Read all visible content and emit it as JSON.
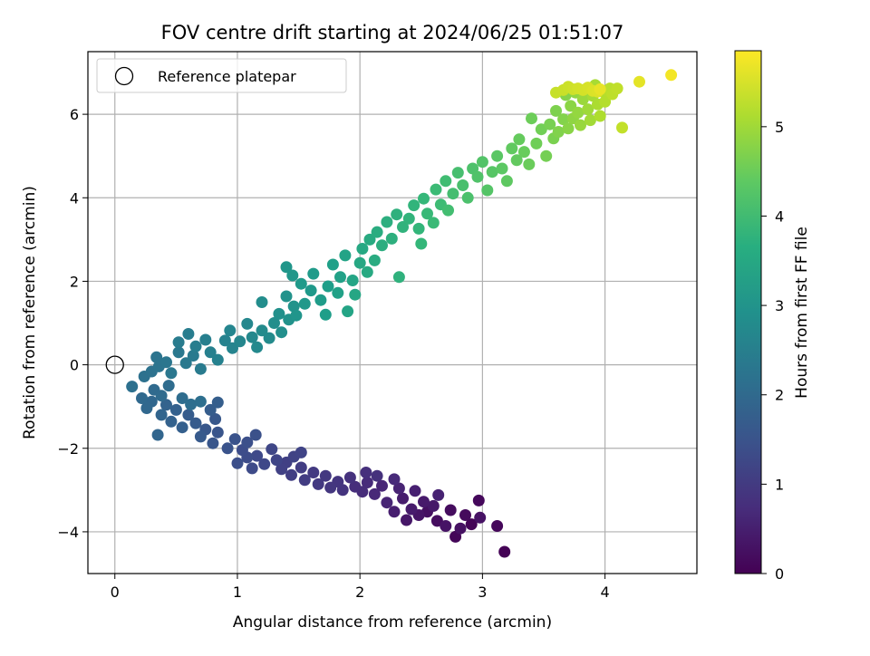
{
  "chart_data": {
    "type": "scatter",
    "title": "FOV centre drift starting at 2024/06/25 01:51:07",
    "xlabel": "Angular distance from reference (arcmin)",
    "ylabel": "Rotation from reference (arcmin)",
    "xlim": [
      -0.22,
      4.75
    ],
    "ylim": [
      -5.0,
      7.5
    ],
    "xticks": [
      0,
      1,
      2,
      3,
      4
    ],
    "yticks": [
      -4,
      -2,
      0,
      2,
      4,
      6
    ],
    "xtick_labels": [
      "0",
      "1",
      "2",
      "3",
      "4"
    ],
    "ytick_labels": [
      "−4",
      "−2",
      "0",
      "2",
      "4",
      "6"
    ],
    "grid": true,
    "legend": {
      "placement": "top-left",
      "entries": [
        "Reference platepar"
      ]
    },
    "reference_point": {
      "x": 0.0,
      "y": 0.0
    },
    "colorbar": {
      "label": "Hours from first FF file",
      "range": [
        0,
        5.85
      ],
      "ticks": [
        0,
        1,
        2,
        3,
        4,
        5
      ],
      "tick_labels": [
        "0",
        "1",
        "2",
        "3",
        "4",
        "5"
      ],
      "colormap": "viridis"
    },
    "series": [
      {
        "points": [
          [
            3.18,
            -4.48,
            0.02
          ],
          [
            2.91,
            -3.82,
            0.05
          ],
          [
            2.78,
            -4.12,
            0.08
          ],
          [
            3.12,
            -3.86,
            0.1
          ],
          [
            2.97,
            -3.25,
            0.12
          ],
          [
            2.86,
            -3.6,
            0.15
          ],
          [
            2.74,
            -3.48,
            0.18
          ],
          [
            2.63,
            -3.74,
            0.2
          ],
          [
            2.55,
            -3.52,
            0.23
          ],
          [
            2.82,
            -3.92,
            0.26
          ],
          [
            2.98,
            -3.66,
            0.28
          ],
          [
            2.7,
            -3.86,
            0.3
          ],
          [
            2.48,
            -3.6,
            0.33
          ],
          [
            2.38,
            -3.72,
            0.36
          ],
          [
            2.6,
            -3.38,
            0.38
          ],
          [
            2.52,
            -3.28,
            0.41
          ],
          [
            2.42,
            -3.46,
            0.44
          ],
          [
            2.35,
            -3.2,
            0.46
          ],
          [
            2.28,
            -3.52,
            0.49
          ],
          [
            2.45,
            -3.02,
            0.52
          ],
          [
            2.64,
            -3.12,
            0.55
          ],
          [
            2.32,
            -2.96,
            0.58
          ],
          [
            2.22,
            -3.3,
            0.6
          ],
          [
            2.18,
            -2.9,
            0.63
          ],
          [
            2.12,
            -3.1,
            0.66
          ],
          [
            2.28,
            -2.74,
            0.69
          ],
          [
            2.06,
            -2.82,
            0.72
          ],
          [
            2.02,
            -3.04,
            0.74
          ],
          [
            1.96,
            -2.92,
            0.77
          ],
          [
            2.05,
            -2.58,
            0.8
          ],
          [
            2.14,
            -2.66,
            0.82
          ],
          [
            1.92,
            -2.7,
            0.85
          ],
          [
            1.86,
            -3.0,
            0.88
          ],
          [
            1.82,
            -2.8,
            0.9
          ],
          [
            1.76,
            -2.94,
            0.93
          ],
          [
            1.72,
            -2.66,
            0.96
          ],
          [
            1.66,
            -2.86,
            0.98
          ],
          [
            1.62,
            -2.58,
            1.0
          ],
          [
            1.55,
            -2.76,
            1.03
          ],
          [
            1.52,
            -2.46,
            1.06
          ],
          [
            1.44,
            -2.64,
            1.08
          ],
          [
            1.4,
            -2.34,
            1.1
          ],
          [
            1.36,
            -2.5,
            1.13
          ],
          [
            1.46,
            -2.2,
            1.16
          ],
          [
            1.52,
            -2.1,
            1.18
          ],
          [
            1.32,
            -2.28,
            1.21
          ],
          [
            1.28,
            -2.02,
            1.24
          ],
          [
            1.22,
            -2.38,
            1.26
          ],
          [
            1.16,
            -2.18,
            1.29
          ],
          [
            1.12,
            -2.48,
            1.32
          ],
          [
            1.08,
            -2.22,
            1.34
          ],
          [
            1.04,
            -2.04,
            1.37
          ],
          [
            1.0,
            -2.36,
            1.4
          ],
          [
            1.08,
            -1.86,
            1.42
          ],
          [
            1.15,
            -1.68,
            1.45
          ],
          [
            0.98,
            -1.78,
            1.48
          ],
          [
            0.92,
            -2.0,
            1.5
          ],
          [
            0.84,
            -1.62,
            1.53
          ],
          [
            0.8,
            -1.88,
            1.56
          ],
          [
            0.74,
            -1.55,
            1.58
          ],
          [
            0.82,
            -1.3,
            1.61
          ],
          [
            0.7,
            -1.72,
            1.64
          ],
          [
            0.66,
            -1.4,
            1.66
          ],
          [
            0.6,
            -1.2,
            1.69
          ],
          [
            0.78,
            -1.08,
            1.72
          ],
          [
            0.84,
            -0.9,
            1.74
          ],
          [
            0.55,
            -1.5,
            1.77
          ],
          [
            0.5,
            -1.08,
            1.8
          ],
          [
            0.46,
            -1.36,
            1.82
          ],
          [
            0.42,
            -0.96,
            1.85
          ],
          [
            0.38,
            -1.2,
            1.88
          ],
          [
            0.35,
            -1.68,
            1.9
          ],
          [
            0.3,
            -0.88,
            1.93
          ],
          [
            0.26,
            -1.04,
            1.96
          ],
          [
            0.22,
            -0.8,
            1.98
          ],
          [
            0.32,
            -0.6,
            2.0
          ],
          [
            0.38,
            -0.74,
            2.03
          ],
          [
            0.44,
            -0.5,
            2.06
          ],
          [
            0.55,
            -0.8,
            2.08
          ],
          [
            0.62,
            -0.95,
            2.1
          ],
          [
            0.7,
            -0.88,
            2.13
          ],
          [
            0.14,
            -0.52,
            2.16
          ],
          [
            0.24,
            -0.28,
            2.18
          ],
          [
            0.3,
            -0.16,
            2.21
          ],
          [
            0.36,
            -0.04,
            2.24
          ],
          [
            0.34,
            0.18,
            2.26
          ],
          [
            0.42,
            0.06,
            2.29
          ],
          [
            0.46,
            -0.2,
            2.32
          ],
          [
            0.52,
            0.3,
            2.34
          ],
          [
            0.58,
            0.04,
            2.37
          ],
          [
            0.64,
            0.22,
            2.4
          ],
          [
            0.7,
            -0.1,
            2.42
          ],
          [
            0.52,
            0.54,
            2.45
          ],
          [
            0.6,
            0.74,
            2.48
          ],
          [
            0.66,
            0.44,
            2.5
          ],
          [
            0.74,
            0.6,
            2.53
          ],
          [
            0.78,
            0.3,
            2.56
          ],
          [
            0.84,
            0.12,
            2.58
          ],
          [
            0.9,
            0.58,
            2.61
          ],
          [
            0.96,
            0.4,
            2.64
          ],
          [
            0.94,
            0.82,
            2.66
          ],
          [
            1.02,
            0.56,
            2.69
          ],
          [
            1.08,
            0.98,
            2.72
          ],
          [
            1.12,
            0.66,
            2.74
          ],
          [
            1.16,
            0.42,
            2.77
          ],
          [
            1.2,
            0.82,
            2.8
          ],
          [
            1.26,
            0.64,
            2.82
          ],
          [
            1.2,
            1.5,
            2.85
          ],
          [
            1.3,
            1.0,
            2.88
          ],
          [
            1.36,
            0.78,
            2.9
          ],
          [
            1.34,
            1.22,
            2.93
          ],
          [
            1.42,
            1.08,
            2.96
          ],
          [
            1.4,
            1.64,
            2.98
          ],
          [
            1.46,
            1.4,
            3.0
          ],
          [
            1.48,
            1.18,
            3.03
          ],
          [
            1.4,
            2.34,
            3.06
          ],
          [
            1.45,
            2.14,
            3.08
          ],
          [
            1.55,
            1.46,
            3.1
          ],
          [
            1.6,
            1.78,
            3.13
          ],
          [
            1.52,
            1.94,
            3.16
          ],
          [
            1.62,
            2.18,
            3.18
          ],
          [
            1.68,
            1.55,
            3.21
          ],
          [
            1.72,
            1.2,
            3.24
          ],
          [
            1.74,
            1.88,
            3.26
          ],
          [
            1.78,
            2.4,
            3.29
          ],
          [
            1.82,
            1.72,
            3.32
          ],
          [
            1.84,
            2.1,
            3.34
          ],
          [
            1.88,
            2.62,
            3.37
          ],
          [
            1.9,
            1.28,
            3.4
          ],
          [
            1.94,
            2.02,
            3.42
          ],
          [
            1.96,
            1.68,
            3.45
          ],
          [
            2.0,
            2.44,
            3.48
          ],
          [
            2.02,
            2.78,
            3.5
          ],
          [
            2.06,
            2.22,
            3.53
          ],
          [
            2.08,
            3.0,
            3.56
          ],
          [
            2.12,
            2.5,
            3.58
          ],
          [
            2.14,
            3.18,
            3.61
          ],
          [
            2.18,
            2.86,
            3.64
          ],
          [
            2.22,
            3.42,
            3.66
          ],
          [
            2.26,
            3.02,
            3.69
          ],
          [
            2.3,
            3.6,
            3.72
          ],
          [
            2.32,
            2.1,
            3.74
          ],
          [
            2.35,
            3.3,
            3.77
          ],
          [
            2.4,
            3.5,
            3.8
          ],
          [
            2.44,
            3.82,
            3.82
          ],
          [
            2.48,
            3.26,
            3.85
          ],
          [
            2.5,
            2.9,
            3.88
          ],
          [
            2.52,
            3.98,
            3.9
          ],
          [
            2.55,
            3.62,
            3.93
          ],
          [
            2.6,
            3.4,
            3.96
          ],
          [
            2.62,
            4.2,
            3.98
          ],
          [
            2.66,
            3.84,
            4.0
          ],
          [
            2.7,
            4.4,
            4.03
          ],
          [
            2.72,
            3.7,
            4.06
          ],
          [
            2.76,
            4.1,
            4.08
          ],
          [
            2.8,
            4.6,
            4.1
          ],
          [
            2.84,
            4.3,
            4.13
          ],
          [
            2.88,
            4.0,
            4.16
          ],
          [
            2.92,
            4.7,
            4.18
          ],
          [
            2.96,
            4.5,
            4.21
          ],
          [
            3.0,
            4.86,
            4.24
          ],
          [
            3.04,
            4.18,
            4.26
          ],
          [
            3.08,
            4.62,
            4.29
          ],
          [
            3.12,
            5.0,
            4.32
          ],
          [
            3.16,
            4.7,
            4.34
          ],
          [
            3.2,
            4.4,
            4.37
          ],
          [
            3.24,
            5.18,
            4.4
          ],
          [
            3.28,
            4.9,
            4.42
          ],
          [
            3.3,
            5.4,
            4.45
          ],
          [
            3.34,
            5.1,
            4.48
          ],
          [
            3.38,
            4.8,
            4.5
          ],
          [
            3.4,
            5.9,
            4.53
          ],
          [
            3.44,
            5.3,
            4.56
          ],
          [
            3.48,
            5.64,
            4.58
          ],
          [
            3.52,
            5.0,
            4.61
          ],
          [
            3.55,
            5.76,
            4.64
          ],
          [
            3.58,
            5.42,
            4.66
          ],
          [
            3.6,
            6.08,
            4.69
          ],
          [
            3.62,
            5.58,
            4.72
          ],
          [
            3.66,
            5.88,
            4.74
          ],
          [
            3.68,
            6.46,
            4.77
          ],
          [
            3.7,
            5.66,
            4.8
          ],
          [
            3.72,
            6.2,
            4.82
          ],
          [
            3.74,
            5.9,
            4.85
          ],
          [
            3.76,
            6.52,
            4.88
          ],
          [
            3.78,
            6.04,
            4.9
          ],
          [
            3.8,
            5.74,
            4.93
          ],
          [
            3.82,
            6.36,
            4.96
          ],
          [
            3.84,
            6.6,
            4.98
          ],
          [
            3.86,
            6.12,
            5.0
          ],
          [
            3.88,
            5.86,
            5.03
          ],
          [
            3.9,
            6.44,
            5.06
          ],
          [
            3.92,
            6.7,
            5.08
          ],
          [
            3.94,
            6.24,
            5.11
          ],
          [
            3.96,
            5.96,
            5.14
          ],
          [
            3.98,
            6.54,
            5.16
          ],
          [
            4.0,
            6.3,
            5.19
          ],
          [
            4.02,
            6.56,
            5.22
          ],
          [
            4.04,
            6.62,
            5.24
          ],
          [
            4.06,
            6.48,
            5.27
          ],
          [
            4.1,
            6.62,
            5.3
          ],
          [
            4.14,
            5.68,
            5.32
          ],
          [
            3.6,
            6.52,
            5.35
          ],
          [
            3.66,
            6.58,
            5.38
          ],
          [
            3.7,
            6.66,
            5.4
          ],
          [
            3.74,
            6.6,
            5.43
          ],
          [
            3.78,
            6.62,
            5.46
          ],
          [
            3.82,
            6.58,
            5.48
          ],
          [
            3.86,
            6.64,
            5.51
          ],
          [
            3.9,
            6.56,
            5.54
          ],
          [
            3.94,
            6.54,
            5.56
          ],
          [
            4.28,
            6.78,
            5.62
          ],
          [
            3.96,
            6.6,
            5.66
          ],
          [
            4.54,
            6.94,
            5.76
          ]
        ]
      }
    ]
  }
}
